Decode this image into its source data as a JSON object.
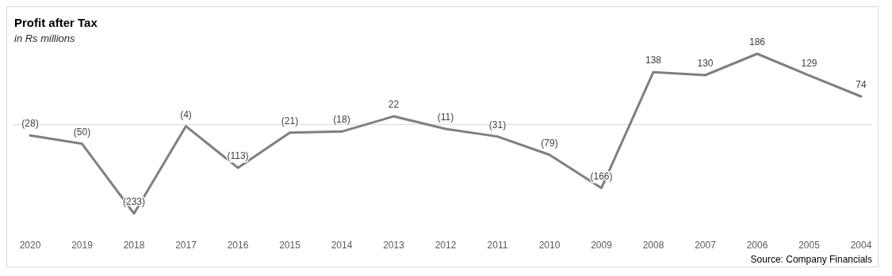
{
  "chart_data": {
    "type": "line",
    "title": "Profit after Tax",
    "subtitle": "in Rs millions",
    "categories": [
      "2020",
      "2019",
      "2018",
      "2017",
      "2016",
      "2015",
      "2014",
      "2013",
      "2012",
      "2011",
      "2010",
      "2009",
      "2008",
      "2007",
      "2006",
      "2005",
      "2004"
    ],
    "series": [
      {
        "color": "#7f7f7f",
        "values": [
          -28,
          -50,
          -233,
          -4,
          -113,
          -21,
          -18,
          22,
          -11,
          -31,
          -79,
          -166,
          138,
          130,
          186,
          129,
          74
        ],
        "value_labels": [
          "(28)",
          "(50)",
          "(233)",
          "(4)",
          "(113)",
          "(21)",
          "(18)",
          "22",
          "(11)",
          "(31)",
          "(79)",
          "(166)",
          "138",
          "130",
          "186",
          "129",
          "74"
        ]
      }
    ],
    "ref_lines": [
      {
        "axis": "y",
        "value": 0,
        "color": "#d9d9d9"
      }
    ],
    "annotations": [
      "Source: Company Financials"
    ],
    "marker": "none",
    "line_style": "solid"
  }
}
